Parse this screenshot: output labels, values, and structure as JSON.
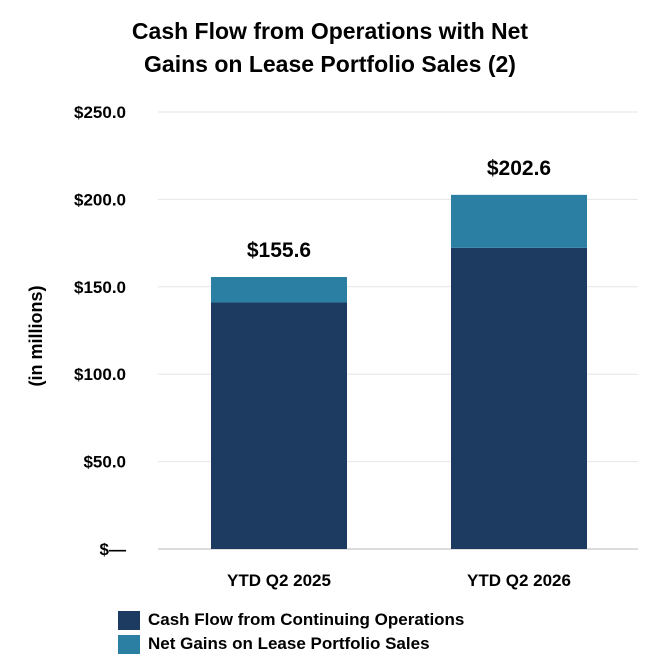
{
  "chart_data": {
    "type": "bar",
    "stacked": true,
    "title_lines": [
      "Cash Flow from Operations with Net",
      "Gains on Lease Portfolio Sales (2)"
    ],
    "ylabel": "(in millions)",
    "categories": [
      "YTD Q2 2025",
      "YTD Q2 2026"
    ],
    "series": [
      {
        "name": "Cash Flow from Continuing Operations",
        "values": [
          141.0,
          172.3
        ],
        "color": "#1d3a60"
      },
      {
        "name": "Net Gains on Lease Portfolio Sales",
        "values": [
          14.6,
          30.3
        ],
        "color": "#2a7fa3"
      }
    ],
    "totals": [
      "$155.6",
      "$202.6"
    ],
    "total_values": [
      155.6,
      202.6
    ],
    "ylim": [
      0,
      250
    ],
    "yticks": [
      0,
      50,
      100,
      150,
      200,
      250
    ],
    "ytick_labels": [
      "$—",
      "$50.0",
      "$100.0",
      "$150.0",
      "$200.0",
      "$250.0"
    ],
    "grid": true,
    "legend_position": "bottom"
  }
}
